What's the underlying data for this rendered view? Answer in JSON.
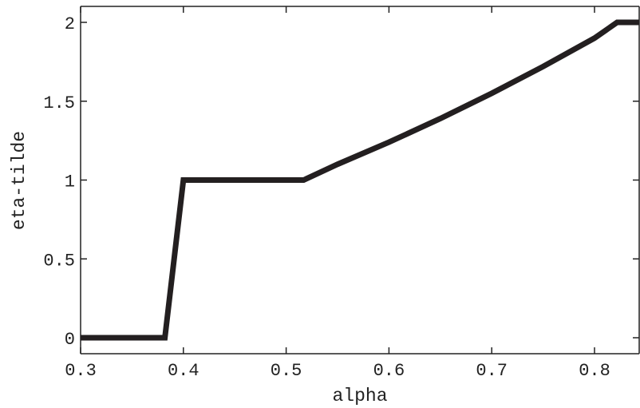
{
  "chart_data": {
    "type": "line",
    "title": "",
    "xlabel": "alpha",
    "ylabel": "eta-tilde",
    "xlim": [
      0.3,
      0.8
    ],
    "ylim": [
      -0.1,
      2.1
    ],
    "grid": false,
    "x_ticks": [
      0.3,
      0.4,
      0.5,
      0.6,
      0.7,
      0.8
    ],
    "x_tick_labels": [
      "0.3",
      "0.4",
      "0.5",
      "0.6",
      "0.7",
      "0.8"
    ],
    "y_ticks": [
      0,
      0.5,
      1,
      1.5,
      2
    ],
    "y_tick_labels": [
      "0",
      "0.5",
      "1",
      "1.5",
      "2"
    ],
    "line_color": "#231f20",
    "series": [
      {
        "x": [
          0.3,
          0.382,
          0.4,
          0.45,
          0.5,
          0.517,
          0.55,
          0.6,
          0.65,
          0.7,
          0.75,
          0.8,
          0.822,
          0.85
        ],
        "y": [
          0,
          0,
          1,
          1,
          1,
          1,
          1.1,
          1.24,
          1.39,
          1.55,
          1.72,
          1.9,
          2,
          2
        ]
      }
    ]
  }
}
